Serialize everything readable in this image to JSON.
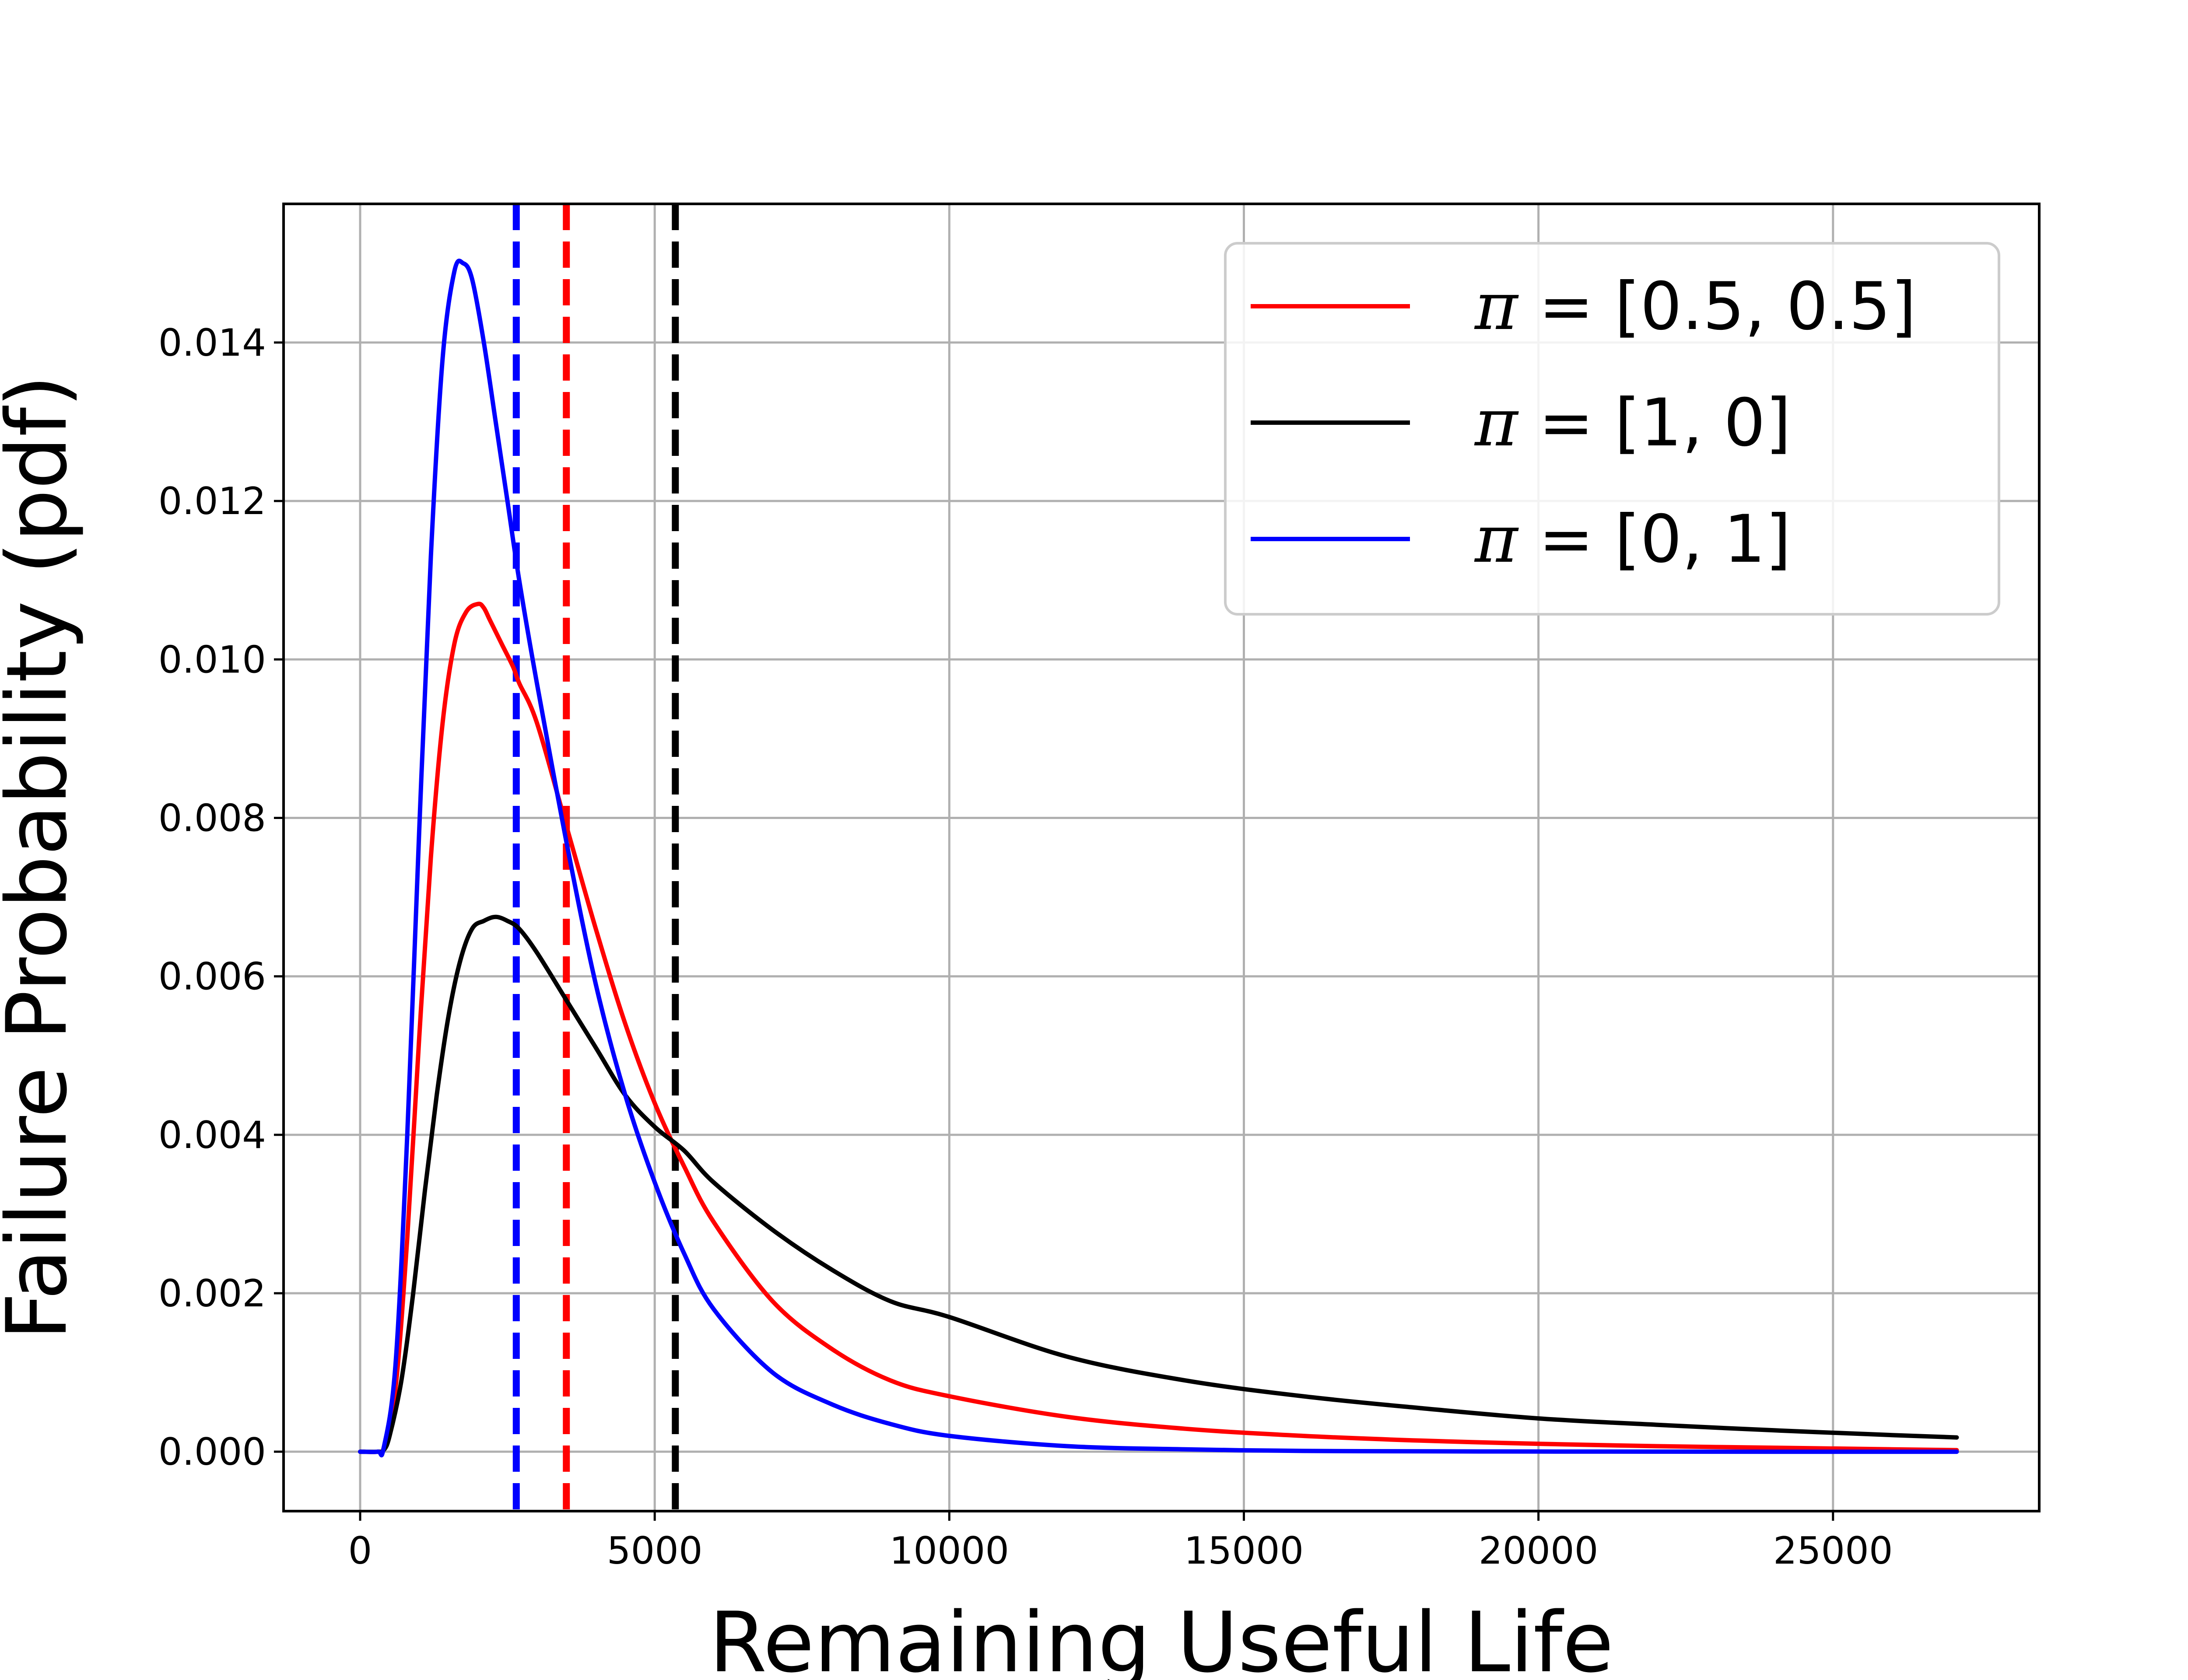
{
  "chart_data": {
    "type": "line",
    "title": "",
    "xlabel": "Remaining Useful Life",
    "ylabel": "Failure Probability (pdf)",
    "xlim": [
      -1300,
      28500
    ],
    "ylim": [
      -0.00075,
      0.01575
    ],
    "xticks": [
      0,
      5000,
      10000,
      15000,
      20000,
      25000
    ],
    "xtick_labels": [
      "0",
      "5000",
      "10000",
      "15000",
      "20000",
      "25000"
    ],
    "yticks": [
      0.0,
      0.002,
      0.004,
      0.006,
      0.008,
      0.01,
      0.012,
      0.014
    ],
    "ytick_labels": [
      "0.000",
      "0.002",
      "0.004",
      "0.006",
      "0.008",
      "0.010",
      "0.012",
      "0.014"
    ],
    "grid": true,
    "legend_position": "top-right",
    "series": [
      {
        "name": "π = [0.5, 0.5]",
        "legend_greek": "π",
        "legend_eq": " = ",
        "legend_vec": "[0.5, 0.5]",
        "color": "#ff0000",
        "x": [
          0,
          300,
          400,
          600,
          800,
          1000,
          1200,
          1400,
          1600,
          1800,
          2000,
          2100,
          2200,
          2400,
          2600,
          2700,
          3000,
          3500,
          4000,
          4500,
          5000,
          5500,
          6000,
          7000,
          8000,
          9000,
          10000,
          12000,
          14000,
          16000,
          18000,
          20000,
          22000,
          24000,
          26000,
          27100
        ],
        "y": [
          0,
          0,
          5e-05,
          0.0008,
          0.0027,
          0.0052,
          0.0075,
          0.0092,
          0.0102,
          0.0106,
          0.0107,
          0.01065,
          0.0105,
          0.0102,
          0.0099,
          0.0097,
          0.0092,
          0.0079,
          0.0066,
          0.0054,
          0.0044,
          0.0036,
          0.0029,
          0.0019,
          0.0013,
          0.0009,
          0.0007,
          0.00044,
          0.00029,
          0.0002,
          0.00014,
          0.0001,
          7e-05,
          5e-05,
          3e-05,
          2e-05
        ]
      },
      {
        "name": "π = [1, 0]",
        "legend_greek": "π",
        "legend_eq": " = ",
        "legend_vec": "[1, 0]",
        "color": "#000000",
        "x": [
          0,
          300,
          400,
          500,
          700,
          900,
          1100,
          1300,
          1500,
          1700,
          1900,
          2100,
          2300,
          2500,
          2700,
          3000,
          3500,
          4000,
          4500,
          5000,
          5500,
          6000,
          7000,
          8000,
          9000,
          10000,
          12000,
          14000,
          16000,
          18000,
          20000,
          22000,
          24000,
          26000,
          27100
        ],
        "y": [
          0,
          0,
          2e-05,
          0.0002,
          0.0009,
          0.002,
          0.0033,
          0.0045,
          0.0055,
          0.0062,
          0.0066,
          0.0067,
          0.00675,
          0.0067,
          0.0066,
          0.0063,
          0.0057,
          0.0051,
          0.0045,
          0.0041,
          0.0038,
          0.0034,
          0.0028,
          0.0023,
          0.0019,
          0.0017,
          0.0012,
          0.0009,
          0.0007,
          0.00055,
          0.00042,
          0.00034,
          0.00027,
          0.00021,
          0.00018
        ]
      },
      {
        "name": "π = [0, 1]",
        "legend_greek": "π",
        "legend_eq": " = ",
        "legend_vec": "[0, 1]",
        "color": "#0000ff",
        "x": [
          0,
          300,
          400,
          600,
          800,
          1000,
          1200,
          1400,
          1600,
          1750,
          1900,
          2100,
          2300,
          2500,
          2700,
          3000,
          3500,
          4000,
          4500,
          5000,
          5500,
          6000,
          7000,
          8000,
          9000,
          10000,
          12000,
          14000,
          16000,
          18000,
          20000,
          22000,
          24000,
          26000,
          27100
        ],
        "y": [
          0,
          0,
          5e-05,
          0.0011,
          0.004,
          0.0078,
          0.0113,
          0.0138,
          0.0149,
          0.015,
          0.0148,
          0.014,
          0.013,
          0.012,
          0.011,
          0.0097,
          0.0077,
          0.0059,
          0.0045,
          0.0034,
          0.0025,
          0.0018,
          0.001,
          0.0006,
          0.00035,
          0.0002,
          7e-05,
          3e-05,
          1e-05,
          5e-06,
          2e-06,
          1e-06,
          0,
          0,
          0
        ]
      }
    ],
    "vlines": [
      {
        "x": 2650,
        "color": "#0000ff",
        "style": "dashed"
      },
      {
        "x": 3500,
        "color": "#ff0000",
        "style": "dashed"
      },
      {
        "x": 5350,
        "color": "#000000",
        "style": "dashed"
      }
    ]
  }
}
